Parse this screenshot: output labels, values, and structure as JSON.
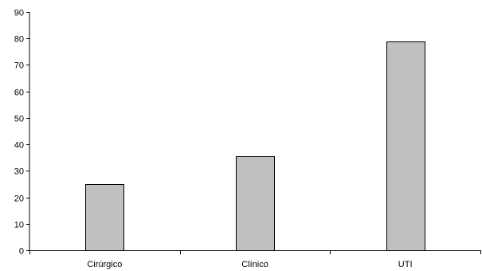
{
  "chart_data": {
    "type": "bar",
    "title": "",
    "xlabel": "",
    "ylabel": "",
    "categories": [
      "Cirúrgico",
      "Clínico",
      "UTI"
    ],
    "values": [
      25,
      35.5,
      79
    ],
    "ylim": [
      0,
      90
    ],
    "yticks": [
      "0",
      "10",
      "20",
      "30",
      "40",
      "50",
      "60",
      "70",
      "80",
      "90"
    ],
    "grid": false,
    "legend": "none",
    "bar_color": "#c0c0c0",
    "bar_edge_color": "#000000",
    "axis_color": "#000000"
  }
}
